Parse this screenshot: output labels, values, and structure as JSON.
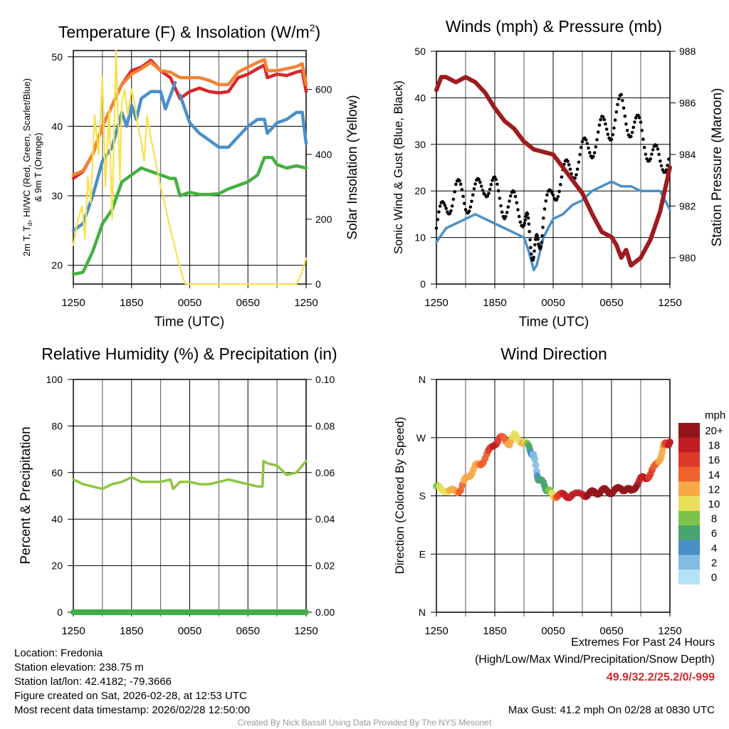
{
  "chart_data": [
    {
      "type": "line",
      "title_main": "Temperature (F) & Insolation (W/m",
      "title_sup": "2",
      "title_end": ")",
      "xlabel": "Time (UTC)",
      "ylabel_parts": [
        "2m T, T",
        "d",
        ", HI/WC (Red, Green, Scarlet/Blue)"
      ],
      "ylabel_line2": "& 9m T (Orange)",
      "ylabel_right": "Solar Insolation (Yellow)",
      "x_ticks": [
        {
          "h": 0,
          "label": "1250"
        },
        {
          "h": 6,
          "label": "1850"
        },
        {
          "h": 12,
          "label": "0050"
        },
        {
          "h": 18,
          "label": "0650"
        },
        {
          "h": 24,
          "label": "1250"
        }
      ],
      "y_ticks": [
        20,
        30,
        40,
        50
      ],
      "y_right_ticks": [
        0,
        200,
        400,
        600
      ],
      "ylim": [
        17.3,
        50.9
      ],
      "ylim_right": [
        0,
        720
      ],
      "x_unit": "hours since 1250 UTC",
      "series": [
        {
          "name": "Temperature 2m",
          "color": "#d7262b",
          "axis": "left",
          "x": [
            0,
            1,
            2,
            3,
            4,
            5,
            6,
            7,
            8,
            9,
            10,
            11,
            12,
            13,
            14,
            15,
            16,
            17,
            18,
            19,
            19.7,
            20,
            21,
            22,
            23,
            23.6,
            24
          ],
          "y": [
            32.5,
            33.5,
            36,
            40,
            43,
            46,
            48,
            48.5,
            49.5,
            48,
            47,
            44,
            45,
            45.5,
            45,
            44.8,
            45,
            47,
            47.5,
            48.3,
            48.8,
            47,
            47.5,
            47.3,
            47.8,
            48,
            45
          ]
        },
        {
          "name": "Temperature 9m",
          "color": "#f58232",
          "axis": "left",
          "x": [
            0,
            1,
            2,
            3,
            4,
            5,
            6,
            7,
            8,
            9,
            10,
            11,
            12,
            13,
            14,
            15,
            16,
            17,
            18,
            19,
            19.7,
            20,
            21,
            22,
            23,
            23.6,
            24
          ],
          "y": [
            33,
            33.6,
            36,
            40,
            43,
            46,
            47.5,
            48.3,
            49.2,
            48,
            47.8,
            47,
            47,
            47,
            46.6,
            46,
            46,
            47.8,
            48.5,
            49.2,
            49.6,
            48,
            48,
            48.3,
            48.6,
            49,
            46
          ]
        },
        {
          "name": "Wind Chill",
          "color": "#4a90c9",
          "axis": "left",
          "x": [
            0,
            1,
            2,
            3,
            4,
            5,
            5.5,
            6,
            6.5,
            7,
            8,
            9,
            9.5,
            10.5,
            10.6,
            11,
            12,
            13,
            14,
            15,
            16,
            17,
            18,
            19,
            19.7,
            20,
            21,
            22,
            23,
            23.6,
            24
          ],
          "y": [
            25,
            26,
            30,
            35,
            37,
            42,
            40,
            43,
            41,
            44,
            45,
            45,
            42.5,
            46.3,
            null,
            44.5,
            40.5,
            39,
            38,
            37,
            37,
            38.5,
            40,
            41,
            41,
            39,
            40.5,
            41,
            42,
            42,
            37.5
          ]
        },
        {
          "name": "Dew Point",
          "color": "#45b040",
          "axis": "left",
          "x": [
            0,
            1,
            2,
            3,
            4,
            5,
            6,
            7,
            8,
            9,
            10,
            10.5,
            11,
            12,
            13,
            14,
            15,
            16,
            17,
            18,
            19,
            19.7,
            20.5,
            21,
            22,
            23,
            24
          ],
          "y": [
            18.7,
            19,
            22,
            26,
            28,
            32,
            33,
            34,
            33.5,
            33,
            32.5,
            32.5,
            30,
            30.5,
            30.2,
            30.2,
            30.3,
            31,
            31.5,
            32,
            33,
            35.5,
            35.5,
            34.5,
            34,
            34.3,
            34
          ]
        },
        {
          "name": "Solar Insolation",
          "color": "#f9e04a",
          "axis": "right",
          "x": [
            0,
            0.4,
            0.9,
            1.2,
            1.5,
            1.8,
            2.2,
            2.6,
            3,
            3.3,
            3.7,
            4,
            4.4,
            4.8,
            5,
            5.3,
            5.6,
            6,
            6.3,
            6.7,
            7,
            7.3,
            7.6,
            8,
            9,
            10,
            11,
            11.5,
            12,
            23,
            23.5,
            24
          ],
          "y": [
            120,
            190,
            240,
            140,
            330,
            250,
            520,
            400,
            640,
            300,
            540,
            200,
            720,
            320,
            560,
            600,
            520,
            600,
            560,
            480,
            440,
            380,
            520,
            450,
            300,
            170,
            50,
            2,
            0,
            0,
            30,
            80
          ]
        }
      ]
    },
    {
      "type": "line",
      "title": "Winds (mph) & Pressure (mb)",
      "xlabel": "Time (UTC)",
      "ylabel": "Sonic Wind & Gust (Blue, Black)",
      "ylabel_right": "Station Pressure (Maroon)",
      "x_ticks": [
        {
          "h": 0,
          "label": "1250"
        },
        {
          "h": 6,
          "label": "1850"
        },
        {
          "h": 12,
          "label": "0050"
        },
        {
          "h": 18,
          "label": "0650"
        },
        {
          "h": 24,
          "label": "1250"
        }
      ],
      "y_ticks": [
        0,
        10,
        20,
        30,
        40,
        50
      ],
      "y_right_ticks": [
        980,
        982,
        984,
        986,
        988
      ],
      "ylim": [
        0,
        50
      ],
      "ylim_right": [
        978.98,
        988
      ],
      "series": [
        {
          "name": "Sonic Wind",
          "color": "#4a90c9",
          "axis": "left",
          "x": [
            0,
            1,
            2,
            3,
            4,
            5,
            6,
            7,
            8,
            9,
            9.5,
            10,
            10.3,
            11,
            12,
            13,
            14,
            15,
            16,
            17,
            18,
            19,
            20,
            21,
            22,
            23,
            24
          ],
          "y": [
            9,
            12,
            13,
            14,
            15,
            14,
            13,
            12,
            11,
            10,
            7,
            3,
            4,
            10,
            14,
            15,
            17,
            18,
            20,
            21,
            22,
            21,
            21,
            20,
            20,
            20,
            16
          ]
        },
        {
          "name": "Gust",
          "color": "#000000",
          "axis": "left",
          "style": "dots",
          "x": [
            0,
            1,
            2,
            3,
            4,
            5,
            6,
            7,
            8,
            9,
            9.5,
            10,
            10.5,
            11,
            12,
            13,
            14,
            15,
            16,
            17,
            18,
            19,
            20,
            21,
            22,
            23,
            24
          ],
          "y": [
            12,
            17,
            20,
            18,
            19,
            22,
            20,
            17,
            17,
            15,
            11,
            7,
            8,
            14,
            20,
            23,
            25,
            28,
            30,
            33,
            34,
            38,
            34,
            33,
            28,
            26,
            28
          ]
        },
        {
          "name": "Station Pressure",
          "color": "#9e1b1f",
          "axis": "right",
          "x": [
            0,
            0.5,
            1,
            2,
            3,
            4,
            5,
            6,
            7,
            8,
            9,
            10,
            11,
            12,
            13,
            14,
            15,
            16,
            17,
            18,
            18.5,
            19,
            19.5,
            20,
            21,
            22,
            23,
            24
          ],
          "y": [
            986.5,
            987,
            987,
            986.8,
            987,
            986.8,
            986.4,
            985.8,
            985.3,
            985,
            984.5,
            984.2,
            984.1,
            984,
            983.5,
            983,
            982.5,
            981.7,
            981,
            980.8,
            980.5,
            980,
            980.3,
            979.7,
            980,
            980.7,
            981.8,
            983.5
          ]
        }
      ]
    },
    {
      "type": "line",
      "title": "Relative Humidity (%) & Precipitation (in)",
      "ylabel": "Percent & Precipitation",
      "x_ticks": [
        {
          "h": 0,
          "label": "1250"
        },
        {
          "h": 6,
          "label": "1850"
        },
        {
          "h": 12,
          "label": "0050"
        },
        {
          "h": 18,
          "label": "0650"
        },
        {
          "h": 24,
          "label": "1250"
        }
      ],
      "y_ticks": [
        0,
        20,
        40,
        60,
        80,
        100
      ],
      "y_right_ticks": [
        "0.00",
        "0.02",
        "0.04",
        "0.06",
        "0.08",
        "0.10"
      ],
      "ylim": [
        0,
        100
      ],
      "ylim_right": [
        0,
        0.1
      ],
      "series": [
        {
          "name": "Relative Humidity",
          "color": "#8dc63f",
          "axis": "left",
          "x": [
            0,
            1,
            2,
            3,
            4,
            5,
            6,
            7,
            8,
            9,
            10,
            10.3,
            11,
            12,
            13,
            14,
            15,
            16,
            17,
            18,
            19,
            19.5,
            19.6,
            20,
            21,
            22,
            23,
            24
          ],
          "y": [
            57,
            55,
            54,
            53,
            55,
            56,
            58,
            56,
            56,
            56,
            57,
            53,
            56,
            56,
            55,
            55,
            56,
            57,
            56,
            55,
            54,
            54,
            65,
            64,
            63,
            59,
            60,
            65
          ]
        },
        {
          "name": "Precipitation",
          "color": "#3fae49",
          "axis": "right",
          "x": [
            0,
            24
          ],
          "y": [
            0,
            0
          ]
        }
      ]
    },
    {
      "type": "scatter",
      "title": "Wind Direction",
      "ylabel": "Direction (Colored By Speed)",
      "x_ticks": [
        {
          "h": 0,
          "label": "1250"
        },
        {
          "h": 6,
          "label": "1850"
        },
        {
          "h": 12,
          "label": "0050"
        },
        {
          "h": 18,
          "label": "0650"
        },
        {
          "h": 24,
          "label": "1250"
        }
      ],
      "y_ticks": [
        {
          "deg": 360,
          "label": "N"
        },
        {
          "deg": 270,
          "label": "W"
        },
        {
          "deg": 180,
          "label": "S"
        },
        {
          "deg": 90,
          "label": "E"
        },
        {
          "deg": 0,
          "label": "N"
        }
      ],
      "ylim": [
        0,
        360
      ],
      "points": [
        [
          0,
          195,
          8
        ],
        [
          0.5,
          188,
          10
        ],
        [
          1,
          190,
          10
        ],
        [
          1.5,
          186,
          12
        ],
        [
          2,
          188,
          12
        ],
        [
          2.5,
          190,
          14
        ],
        [
          3,
          205,
          12
        ],
        [
          3.5,
          215,
          11
        ],
        [
          4,
          225,
          12
        ],
        [
          4.5,
          228,
          13
        ],
        [
          5,
          240,
          14
        ],
        [
          5.5,
          250,
          16
        ],
        [
          6,
          262,
          18
        ],
        [
          6.5,
          268,
          16
        ],
        [
          7,
          268,
          14
        ],
        [
          7.5,
          262,
          12
        ],
        [
          8,
          272,
          10
        ],
        [
          8.5,
          268,
          10
        ],
        [
          9,
          262,
          12
        ],
        [
          9.5,
          255,
          6
        ],
        [
          9.8,
          248,
          4
        ],
        [
          10,
          240,
          2
        ],
        [
          10.3,
          220,
          2
        ],
        [
          10.5,
          205,
          6
        ],
        [
          11,
          198,
          5
        ],
        [
          11.3,
          192,
          6
        ],
        [
          11.6,
          186,
          8
        ],
        [
          12,
          180,
          10
        ],
        [
          12.5,
          182,
          16
        ],
        [
          13,
          180,
          17
        ],
        [
          13.5,
          181,
          18
        ],
        [
          14,
          180,
          17
        ],
        [
          15,
          182,
          18
        ],
        [
          15.5,
          183,
          19
        ],
        [
          16,
          184,
          20
        ],
        [
          16.5,
          186,
          20
        ],
        [
          17,
          188,
          20
        ],
        [
          17.5,
          187,
          20
        ],
        [
          18,
          187,
          20
        ],
        [
          18.5,
          188,
          20
        ],
        [
          19,
          193,
          20
        ],
        [
          19.5,
          190,
          20
        ],
        [
          20,
          186,
          20
        ],
        [
          20.5,
          197,
          20
        ],
        [
          21,
          205,
          18
        ],
        [
          21.5,
          208,
          18
        ],
        [
          22,
          215,
          16
        ],
        [
          22.5,
          225,
          14
        ],
        [
          23,
          240,
          12
        ],
        [
          23.3,
          252,
          12
        ],
        [
          23.6,
          262,
          16
        ],
        [
          24,
          263,
          18
        ]
      ],
      "colorbar": {
        "title": "mph",
        "bins": [
          {
            "label": "20+",
            "color": "#931519"
          },
          {
            "label": "18",
            "color": "#c01d24"
          },
          {
            "label": "16",
            "color": "#dd3a28"
          },
          {
            "label": "14",
            "color": "#f0622c"
          },
          {
            "label": "12",
            "color": "#f8a946"
          },
          {
            "label": "10",
            "color": "#e8e05a"
          },
          {
            "label": "8",
            "color": "#7dc24a"
          },
          {
            "label": "6",
            "color": "#48a56e"
          },
          {
            "label": "4",
            "color": "#4a8ec6"
          },
          {
            "label": "2",
            "color": "#82bce3"
          },
          {
            "label": "0",
            "color": "#b5e2f7"
          }
        ]
      }
    }
  ],
  "footer": {
    "location": "Location: Fredonia",
    "elevation": "Station elevation: 238.75 m",
    "latlon": "Station lat/lon: 42.4182; -79.3666",
    "created": "Figure created on Sat, 2026-02-28, at 12:53 UTC",
    "recent": "Most recent data timestamp: 2026/02/28 12:50:00",
    "extremes_title": "Extremes For Past 24 Hours",
    "extremes_sub": "(High/Low/Max Wind/Precipitation/Snow Depth)",
    "extremes_values": "49.9/32.2/25.2/0/-999",
    "extremes_color": "#d7262b",
    "max_gust": "Max Gust: 41.2 mph On 02/28 at 0830 UTC",
    "credit": "Created By Nick Bassill Using Data Provided By The NYS Mesonet"
  }
}
